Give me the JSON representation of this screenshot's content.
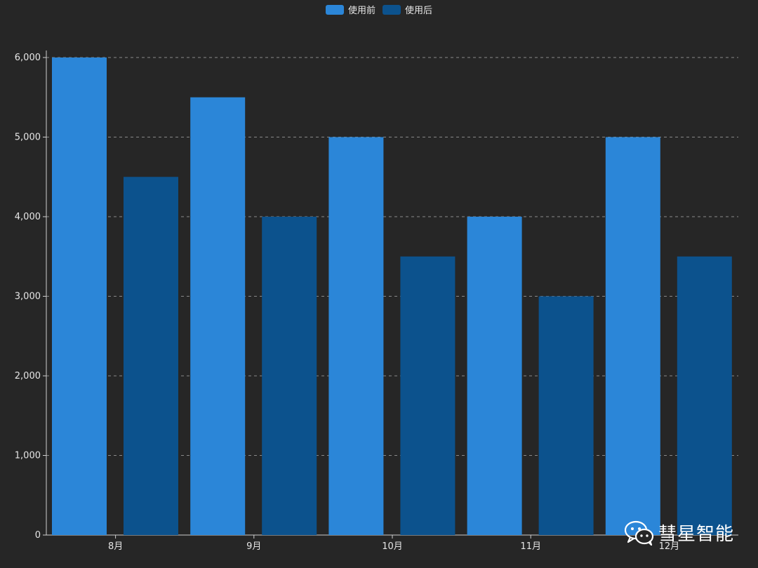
{
  "legend": {
    "items": [
      {
        "label": "使用前"
      },
      {
        "label": "使用后"
      }
    ]
  },
  "watermark": {
    "text": "彗星智能",
    "icon": "wechat-icon"
  },
  "colors": {
    "before": "#2b86d8",
    "after": "#0c528d",
    "axis": "#cfcfcf",
    "grid": "#8a8a8a",
    "text": "#e6e6e6"
  },
  "chart_data": {
    "type": "bar",
    "categories": [
      "8月",
      "9月",
      "10月",
      "11月",
      "12月"
    ],
    "series": [
      {
        "name": "使用前",
        "values": [
          6000,
          5500,
          5000,
          4000,
          5000
        ]
      },
      {
        "name": "使用后",
        "values": [
          4500,
          4000,
          3500,
          3000,
          3500
        ]
      }
    ],
    "y_ticks": [
      "0",
      "1,000",
      "2,000",
      "3,000",
      "4,000",
      "5,000",
      "6,000"
    ],
    "ylim": [
      0,
      6000
    ],
    "grid": true,
    "legend_position": "top-center"
  }
}
